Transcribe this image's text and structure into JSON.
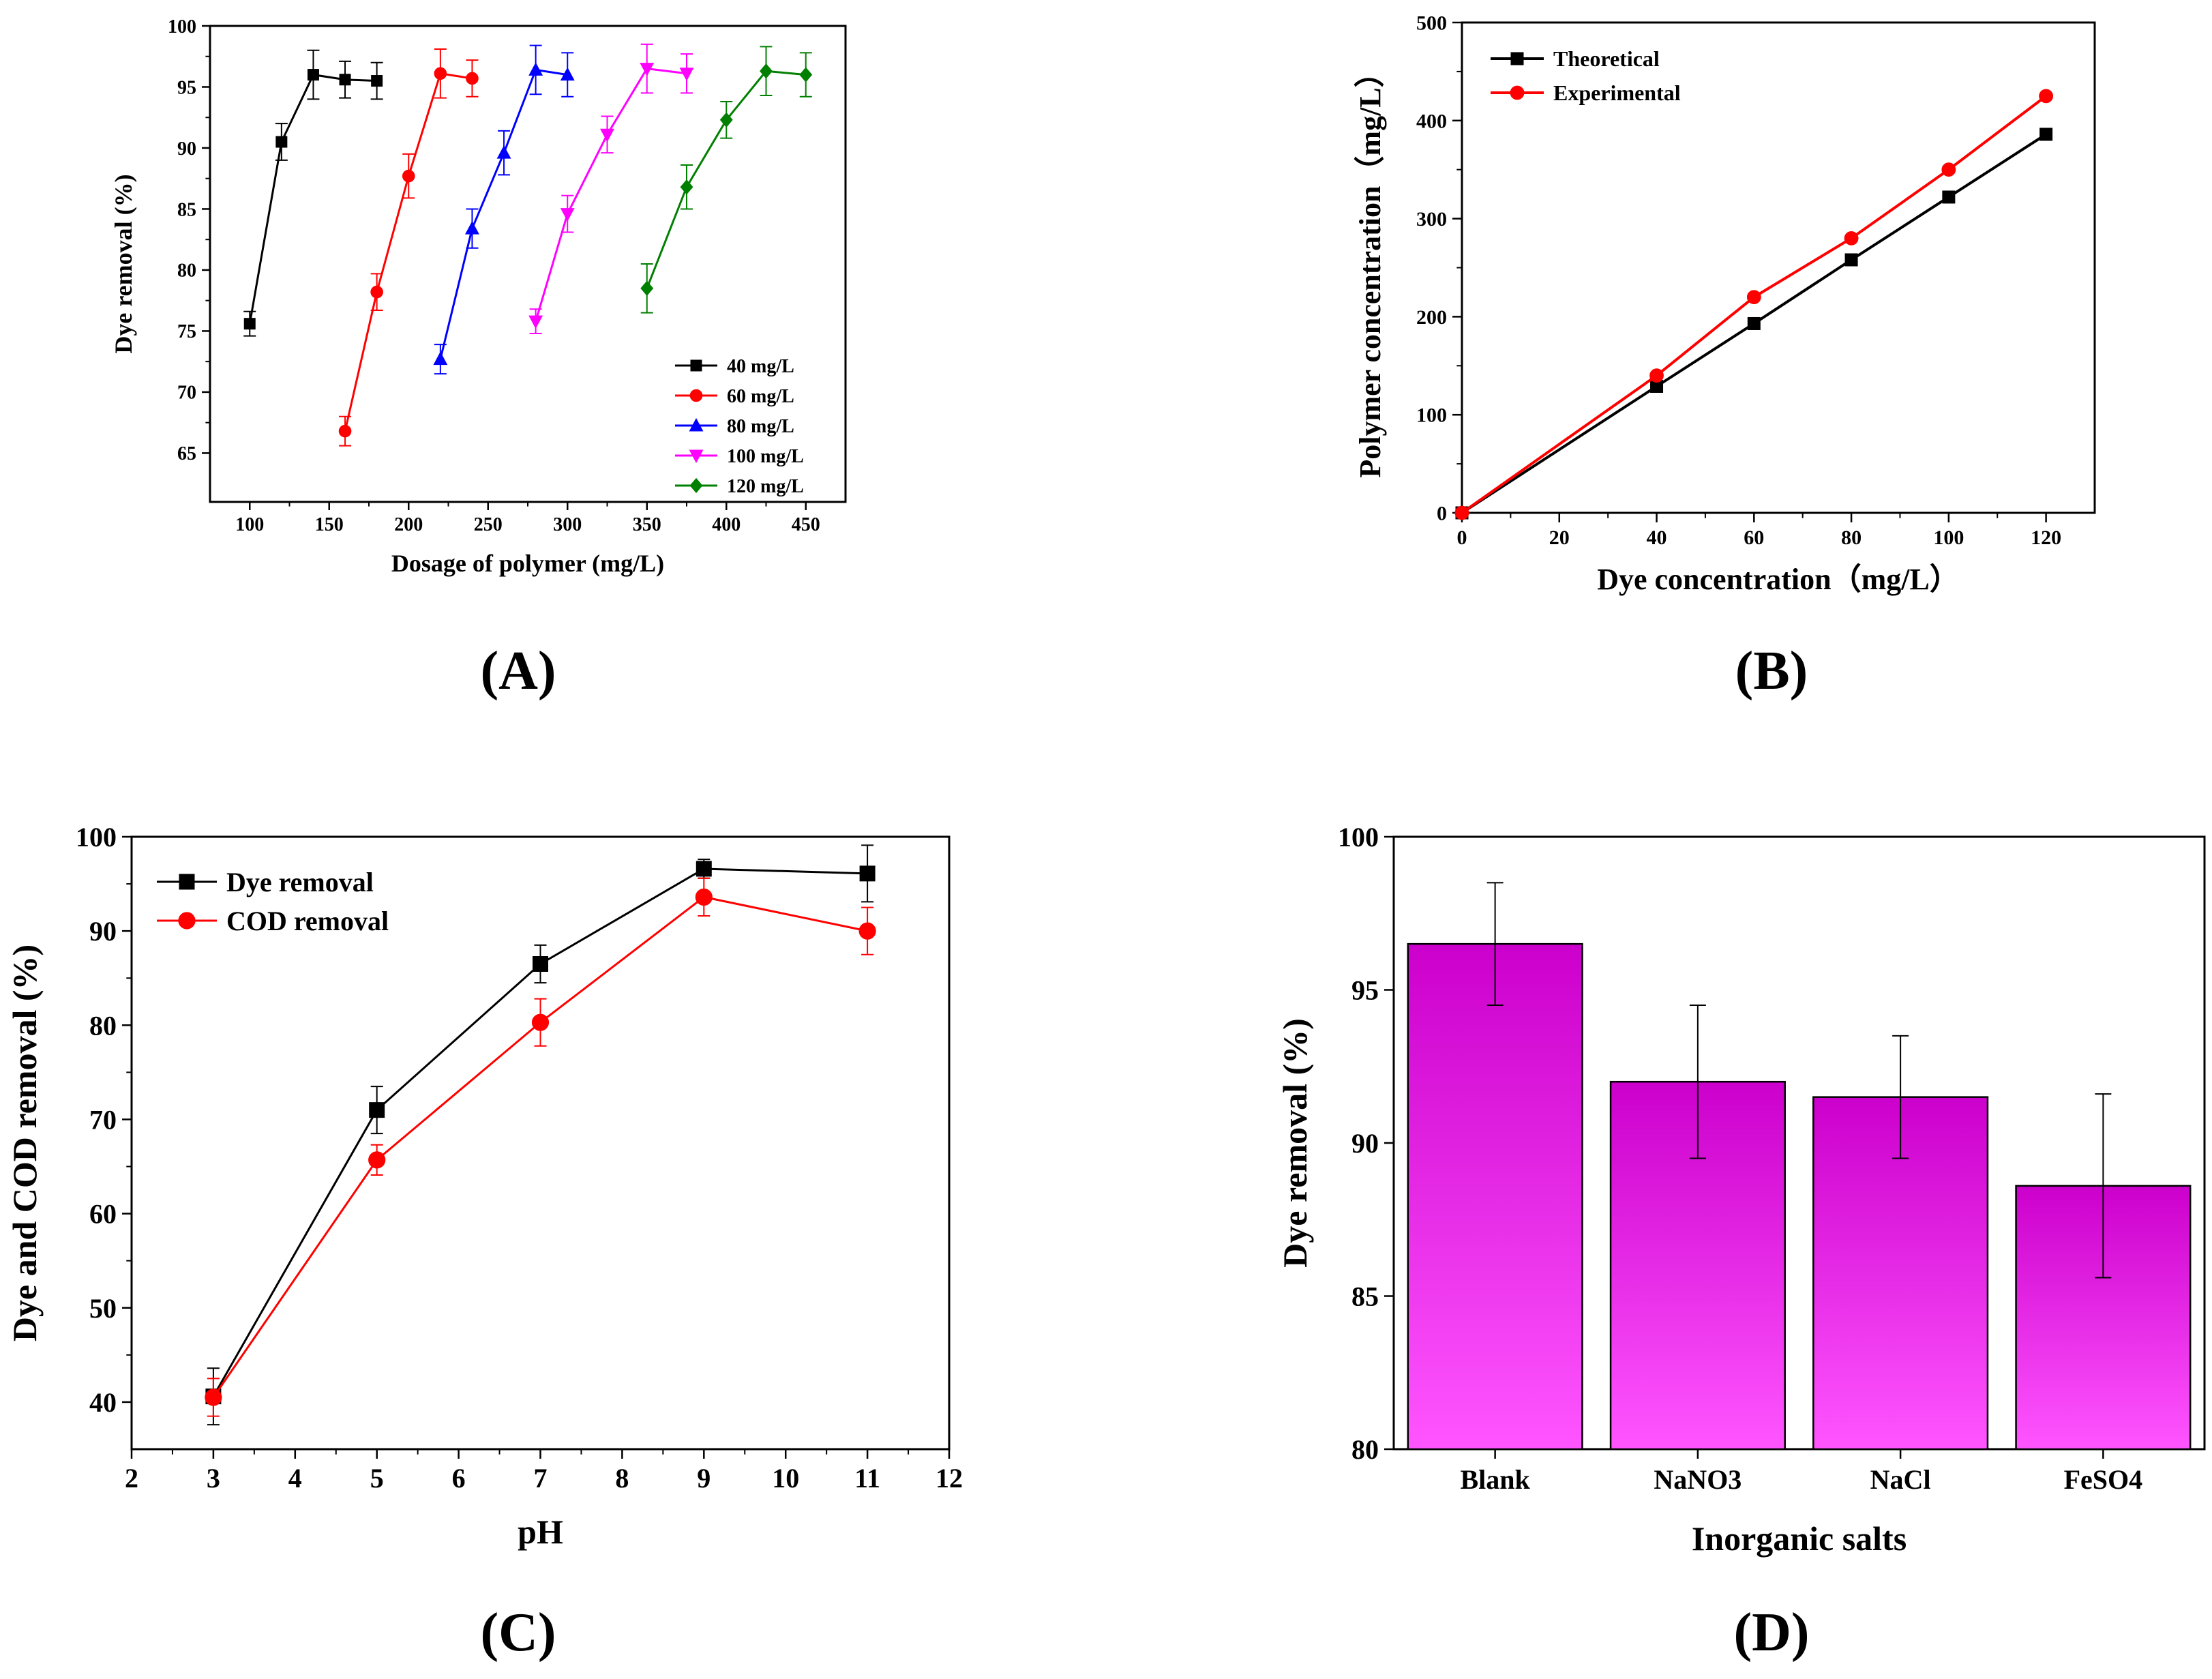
{
  "chart_data": [
    {
      "panel": "(A)",
      "type": "line",
      "xlabel": "Dosage of polymer (mg/L)",
      "ylabel": "Dye removal (%)",
      "xlim": [
        75,
        475
      ],
      "ylim": [
        61,
        100
      ],
      "x_ticks": [
        100,
        150,
        200,
        250,
        300,
        350,
        400,
        450
      ],
      "y_ticks": [
        65,
        70,
        75,
        80,
        85,
        90,
        95,
        100
      ],
      "legend_position": "bottom-right",
      "series": [
        {
          "name": "40 mg/L",
          "color": "#000000",
          "marker": "square",
          "x": [
            100,
            120,
            140,
            160,
            180
          ],
          "y": [
            75.6,
            90.5,
            96.0,
            95.6,
            95.5
          ],
          "err": [
            1.0,
            1.5,
            2.0,
            1.5,
            1.5
          ]
        },
        {
          "name": "60 mg/L",
          "color": "#ff0000",
          "marker": "circle",
          "x": [
            160,
            180,
            200,
            220,
            240
          ],
          "y": [
            66.8,
            78.2,
            87.7,
            96.1,
            95.7
          ],
          "err": [
            1.2,
            1.5,
            1.8,
            2.0,
            1.5
          ]
        },
        {
          "name": "80 mg/L",
          "color": "#0000ff",
          "marker": "triangle-up",
          "x": [
            220,
            240,
            260,
            280,
            300
          ],
          "y": [
            72.7,
            83.4,
            89.6,
            96.4,
            96.0
          ],
          "err": [
            1.2,
            1.6,
            1.8,
            2.0,
            1.8
          ]
        },
        {
          "name": "100 mg/L",
          "color": "#ff00ff",
          "marker": "triangle-down",
          "x": [
            280,
            300,
            325,
            350,
            375
          ],
          "y": [
            75.8,
            84.6,
            91.1,
            96.5,
            96.1
          ],
          "err": [
            1.0,
            1.5,
            1.5,
            2.0,
            1.6
          ]
        },
        {
          "name": "120 mg/L",
          "color": "#008000",
          "marker": "diamond",
          "x": [
            350,
            375,
            400,
            425,
            450
          ],
          "y": [
            78.5,
            86.8,
            92.3,
            96.3,
            96.0
          ],
          "err": [
            2.0,
            1.8,
            1.5,
            2.0,
            1.8
          ]
        }
      ]
    },
    {
      "panel": "(B)",
      "type": "line",
      "xlabel": "Dye concentration（mg/L）",
      "ylabel": "Polymer concentration（mg/L）",
      "xlim": [
        0,
        130
      ],
      "ylim": [
        0,
        500
      ],
      "x_ticks": [
        0,
        20,
        40,
        60,
        80,
        100,
        120
      ],
      "y_ticks": [
        0,
        100,
        200,
        300,
        400,
        500
      ],
      "legend_position": "top-left",
      "series": [
        {
          "name": "Theoretical",
          "color": "#000000",
          "marker": "square",
          "x": [
            0,
            40,
            60,
            80,
            100,
            120
          ],
          "y": [
            0,
            129,
            193,
            258,
            322,
            386
          ]
        },
        {
          "name": "Experimental",
          "color": "#ff0000",
          "marker": "circle",
          "x": [
            0,
            40,
            60,
            80,
            100,
            120
          ],
          "y": [
            0,
            140,
            220,
            280,
            350,
            425
          ]
        }
      ]
    },
    {
      "panel": "(C)",
      "type": "line",
      "xlabel": "pH",
      "ylabel": "Dye and COD removal (%)",
      "xlim": [
        2,
        12
      ],
      "ylim": [
        35,
        100
      ],
      "x_ticks": [
        2,
        3,
        4,
        5,
        6,
        7,
        8,
        9,
        10,
        11,
        12
      ],
      "y_ticks": [
        40,
        50,
        60,
        70,
        80,
        90,
        100
      ],
      "legend_position": "top-left",
      "series": [
        {
          "name": "Dye removal",
          "color": "#000000",
          "marker": "square",
          "x": [
            3,
            5,
            7,
            9,
            11
          ],
          "y": [
            40.6,
            71.0,
            86.5,
            96.6,
            96.1
          ],
          "err": [
            3.0,
            2.5,
            2.0,
            1.0,
            3.0
          ]
        },
        {
          "name": "COD removal",
          "color": "#ff0000",
          "marker": "circle",
          "x": [
            3,
            5,
            7,
            9,
            11
          ],
          "y": [
            40.5,
            65.7,
            80.3,
            93.6,
            90.0
          ],
          "err": [
            2.0,
            1.6,
            2.5,
            2.0,
            2.5
          ]
        }
      ]
    },
    {
      "panel": "(D)",
      "type": "bar",
      "xlabel": "Inorganic salts",
      "ylabel": "Dye removal (%)",
      "ylim": [
        80,
        100
      ],
      "y_ticks": [
        80,
        85,
        90,
        95,
        100
      ],
      "categories": [
        "Blank",
        "NaNO3",
        "NaCl",
        "FeSO4"
      ],
      "values": [
        96.5,
        92.0,
        91.5,
        88.6
      ],
      "err": [
        2.0,
        2.5,
        2.0,
        3.0
      ],
      "color": "#ff33ff"
    }
  ]
}
